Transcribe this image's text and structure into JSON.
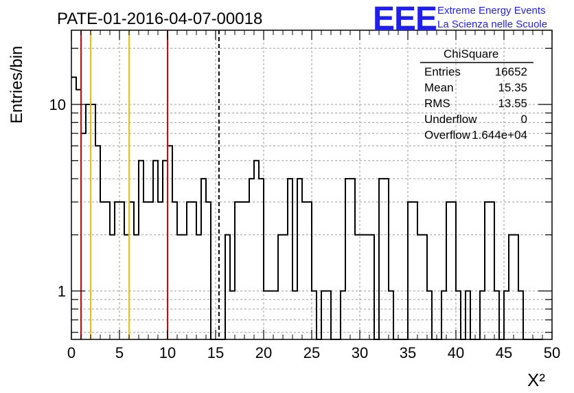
{
  "title": "PATE-01-2016-04-07-00018",
  "logo": {
    "mark": "EEE",
    "line1": "Extreme Energy Events",
    "line2": "La Scienza nelle Scuole",
    "color": "#1f1fe8"
  },
  "stats_box": {
    "title": "ChiSquare",
    "rows": [
      {
        "label": "Entries",
        "value": "16652"
      },
      {
        "label": "Mean",
        "value": "15.35"
      },
      {
        "label": "RMS",
        "value": "13.55"
      },
      {
        "label": "Underflow",
        "value": "0"
      },
      {
        "label": "Overflow",
        "value": "1.644e+04"
      }
    ]
  },
  "chart_data": {
    "type": "histogram",
    "xlabel": "X²",
    "ylabel": "Entries/bin",
    "xlim": [
      0,
      50
    ],
    "ylim": [
      0.55,
      25
    ],
    "ylog": true,
    "grid": true,
    "x_ticks": [
      "0",
      "5",
      "10",
      "15",
      "20",
      "25",
      "30",
      "35",
      "40",
      "45",
      "50"
    ],
    "y_ticks": [
      "1",
      "10"
    ],
    "bin_width": 0.5,
    "values": [
      14,
      12,
      7,
      10,
      10,
      6,
      3,
      3,
      2,
      3,
      3,
      2,
      3,
      2,
      5,
      3,
      3,
      5,
      3,
      5,
      6,
      3,
      2,
      2,
      3,
      3,
      2,
      4,
      3,
      0.5,
      0.5,
      0.5,
      2,
      1,
      3,
      3,
      3,
      4,
      5,
      4,
      1,
      1,
      1,
      2,
      2,
      4,
      1,
      4,
      3,
      3,
      1,
      0.5,
      1,
      1,
      0.5,
      0.5,
      1,
      4,
      4,
      2,
      2,
      2,
      2,
      0.5,
      4,
      4,
      1,
      0.5,
      0.5,
      0.5,
      3,
      3,
      2,
      2,
      1,
      0.5,
      0.5,
      1,
      3,
      3,
      1,
      0.5,
      1,
      0.5,
      0.5,
      1,
      3,
      3,
      1,
      0.5,
      1,
      2,
      2,
      1,
      0.5,
      0.5,
      0.5,
      0.5
    ],
    "vertical_lines": [
      {
        "x": 1,
        "color": "#e00000",
        "style": "solid"
      },
      {
        "x": 2,
        "color": "#f0c000",
        "style": "solid"
      },
      {
        "x": 6,
        "color": "#f0c000",
        "style": "solid"
      },
      {
        "x": 10,
        "color": "#e00000",
        "style": "solid"
      },
      {
        "x": 15.35,
        "color": "#000000",
        "style": "dashed"
      }
    ]
  }
}
